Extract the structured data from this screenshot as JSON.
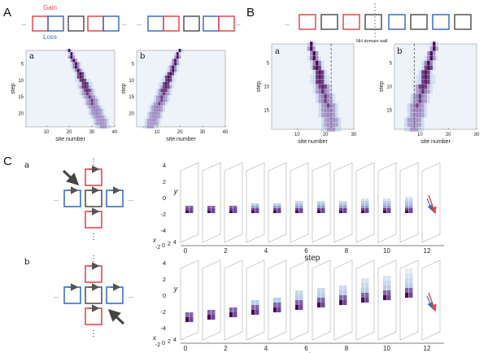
{
  "figure": {
    "panel_labels": {
      "A": "A",
      "B": "B",
      "C": "C"
    },
    "sub_labels": {
      "Aa": "a",
      "Ab": "b",
      "Ba": "a",
      "Bb": "b",
      "Ca": "a",
      "Cb": "b"
    },
    "legend": {
      "gain": "Gain",
      "loss": "Loss"
    },
    "ellipsis": "...",
    "domain_wall_label": "NH domain wall",
    "colors": {
      "gain": "#e8474c",
      "loss": "#3a6fc4",
      "neutral": "#555555",
      "heat": "#4a0a5a"
    }
  },
  "chart_data": [
    {
      "id": "A-a",
      "type": "heatmap",
      "xlabel": "site number",
      "ylabel": "step",
      "xticks": [
        "10",
        "20",
        "30",
        "40"
      ],
      "yticks": [
        "5",
        "10",
        "15",
        "20"
      ],
      "xlim": [
        1,
        40
      ],
      "ylim": [
        1,
        24
      ],
      "trajectory": {
        "start_site": 20,
        "end_site": 35,
        "direction": "right"
      }
    },
    {
      "id": "A-b",
      "type": "heatmap",
      "xlabel": "site number",
      "ylabel": "step",
      "xticks": [
        "10",
        "20",
        "30",
        "40"
      ],
      "yticks": [
        "5",
        "10",
        "15",
        "20"
      ],
      "xlim": [
        1,
        40
      ],
      "ylim": [
        1,
        24
      ],
      "trajectory": {
        "start_site": 20,
        "end_site": 7,
        "direction": "left"
      }
    },
    {
      "id": "B-a",
      "type": "heatmap",
      "xlabel": "site number",
      "ylabel": "step",
      "xticks": [
        "10",
        "20",
        "30"
      ],
      "yticks": [
        "5",
        "10",
        "15"
      ],
      "xlim": [
        1,
        30
      ],
      "ylim": [
        1,
        19
      ],
      "domain_wall_site": 22,
      "trajectory": {
        "start_site": 15,
        "end_site": 22
      }
    },
    {
      "id": "B-b",
      "type": "heatmap",
      "xlabel": "site number",
      "ylabel": "step",
      "xticks": [
        "10",
        "20",
        "30"
      ],
      "yticks": [
        "5",
        "10",
        "15"
      ],
      "xlim": [
        1,
        30
      ],
      "ylim": [
        1,
        19
      ],
      "domain_wall_site": 8,
      "trajectory": {
        "start_site": 15,
        "end_site": 8
      }
    },
    {
      "id": "C-a",
      "type": "heatmap",
      "xlabel": "step",
      "ylabel": "y",
      "zlabel": "x",
      "steps": [
        "0",
        "2",
        "4",
        "6",
        "8",
        "10",
        "12"
      ],
      "yticks": [
        "4",
        "2",
        "0",
        "-2",
        "-4"
      ],
      "xticks": [
        "-2",
        "0",
        "2",
        "4"
      ]
    },
    {
      "id": "C-b",
      "type": "heatmap",
      "xlabel": "step",
      "ylabel": "y",
      "zlabel": "x",
      "steps": [
        "0",
        "2",
        "4",
        "6",
        "8",
        "10",
        "12"
      ],
      "yticks": [
        "4",
        "2",
        "0",
        "-2",
        "-4"
      ],
      "xticks": [
        "-2",
        "0",
        "2",
        "4"
      ]
    }
  ]
}
